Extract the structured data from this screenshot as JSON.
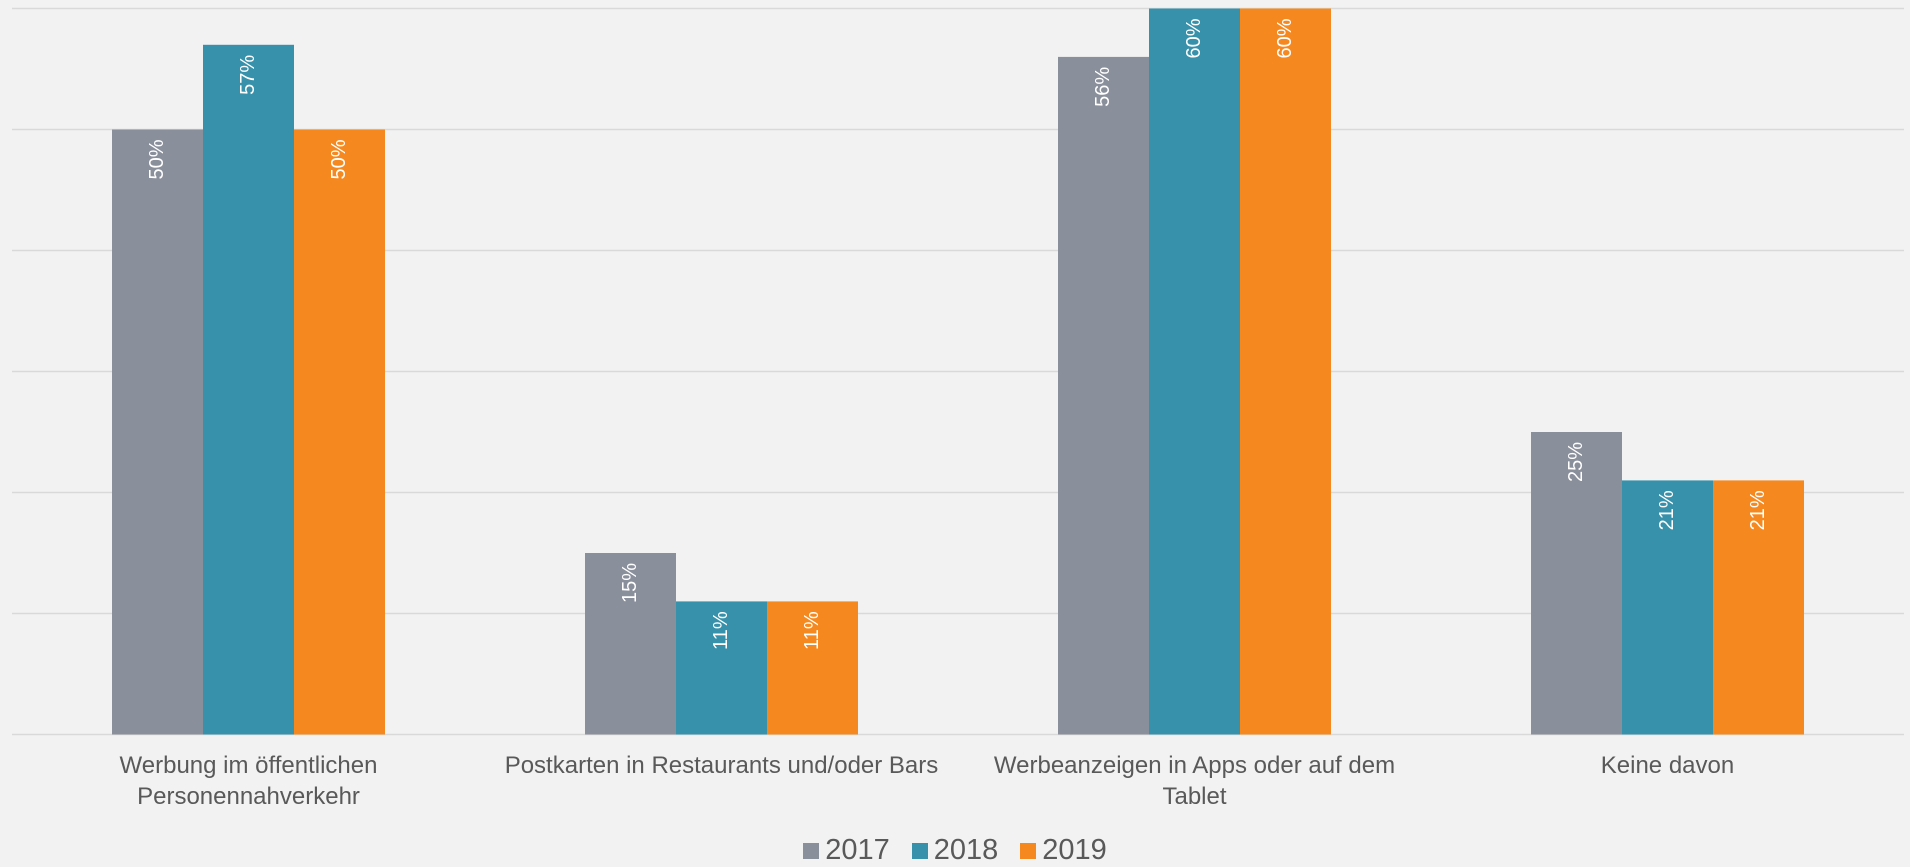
{
  "chart_data": {
    "type": "bar",
    "categories": [
      "Werbung im öffentlichen Personennahverkehr",
      "Postkarten in Restaurants und/oder Bars",
      "Werbeanzeigen in Apps oder auf dem Tablet",
      "Keine davon"
    ],
    "series": [
      {
        "name": "2017",
        "color": "#8a8f9c",
        "values": [
          50,
          15,
          56,
          25
        ],
        "value_labels": [
          "50%",
          "15%",
          "56%",
          "25%"
        ]
      },
      {
        "name": "2018",
        "color": "#3891ab",
        "values": [
          57,
          11,
          60,
          21
        ],
        "value_labels": [
          "57%",
          "11%",
          "60%",
          "21%"
        ]
      },
      {
        "name": "2019",
        "color": "#f5891f",
        "values": [
          50,
          11,
          60,
          21
        ],
        "value_labels": [
          "50%",
          "11%",
          "60%",
          "21%"
        ]
      }
    ],
    "ylim": [
      0,
      60
    ],
    "yticks": [
      0,
      10,
      20,
      30,
      40,
      50,
      60
    ],
    "grid": true,
    "legend": "bottom"
  }
}
